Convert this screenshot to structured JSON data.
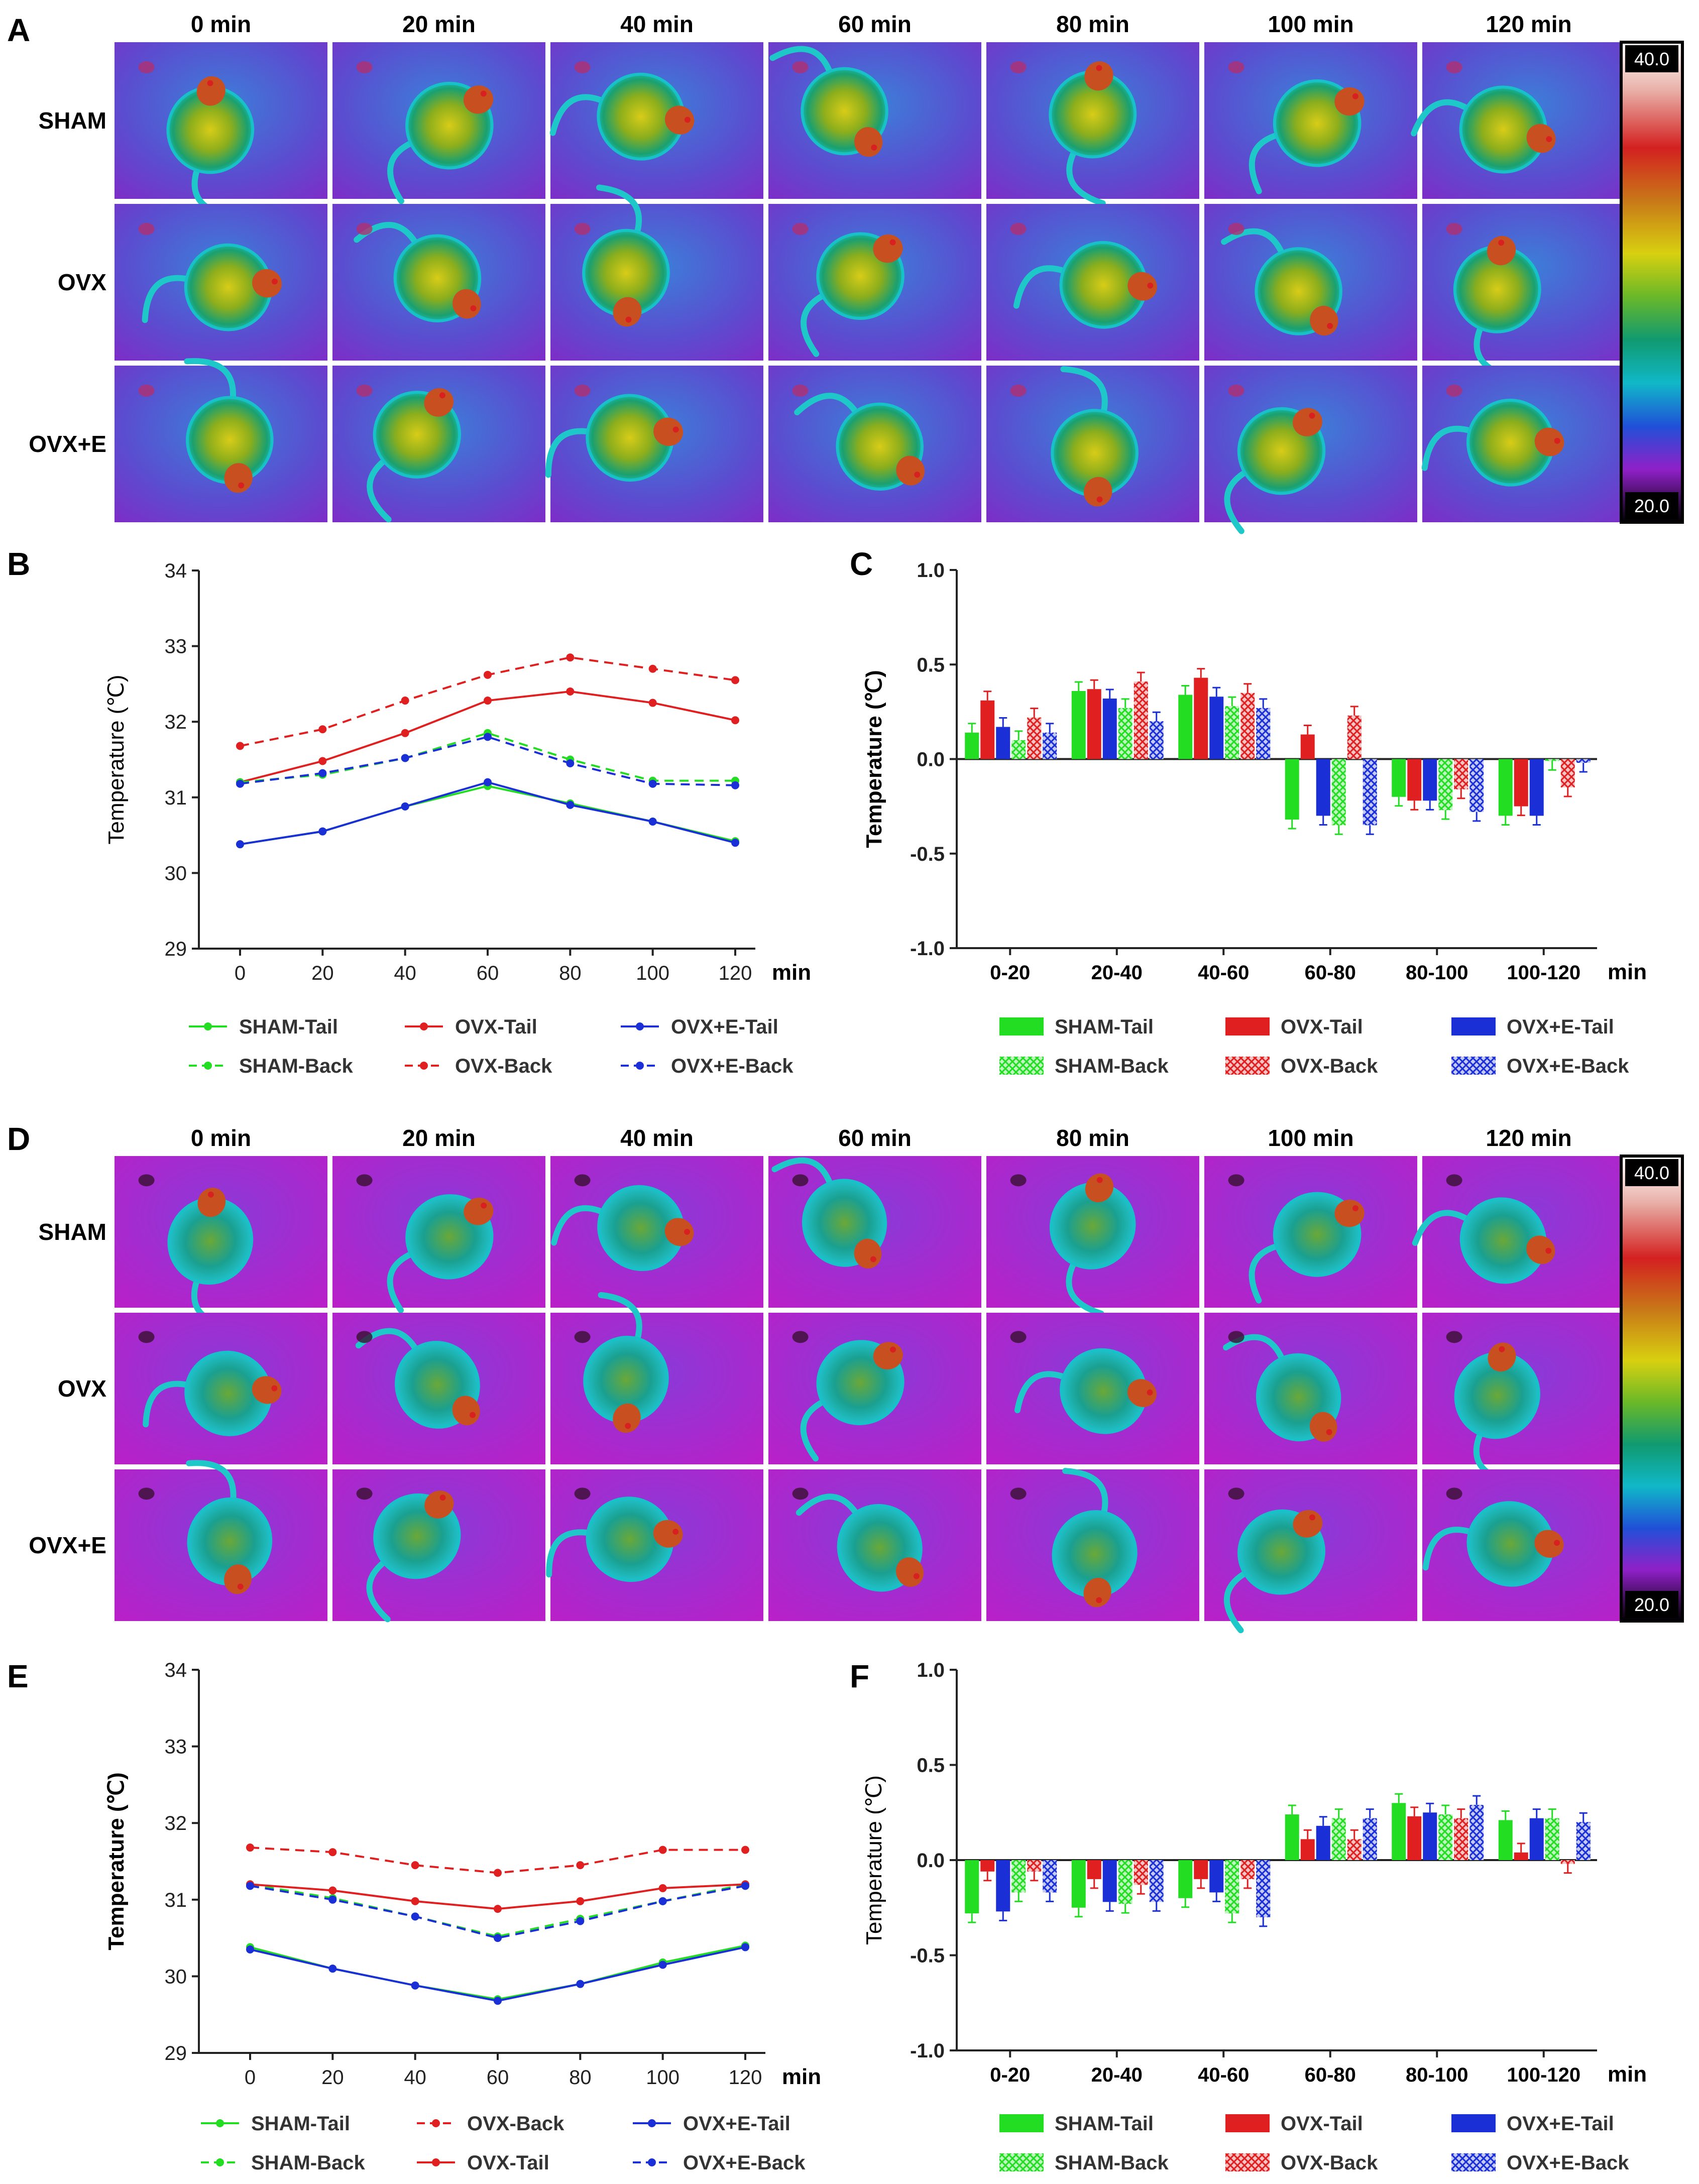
{
  "panel_letters": [
    "A",
    "B",
    "C",
    "D",
    "E",
    "F"
  ],
  "thermal_panels": [
    {
      "id": "A",
      "time_labels": [
        "0 min",
        "20 min",
        "40 min",
        "60 min",
        "80 min",
        "100 min",
        "120 min"
      ],
      "row_labels": [
        "SHAM",
        "OVX",
        "OVX+E"
      ],
      "scale_max": "40.0",
      "scale_min": "20.0"
    },
    {
      "id": "D",
      "time_labels": [
        "0 min",
        "20 min",
        "40 min",
        "60 min",
        "80 min",
        "100 min",
        "120 min"
      ],
      "row_labels": [
        "SHAM",
        "OVX",
        "OVX+E"
      ],
      "scale_max": "40.0",
      "scale_min": "20.0"
    }
  ],
  "colors": {
    "sham": "#22dd22",
    "ovx": "#e02020",
    "ovxe": "#1a2fd6"
  },
  "chart_data": [
    {
      "id": "B",
      "type": "line",
      "ylabel": "Temperature (℃)",
      "xunit": "min",
      "x": [
        0,
        20,
        40,
        60,
        80,
        100,
        120
      ],
      "ylim": [
        29,
        34
      ],
      "yticks": [
        29,
        30,
        31,
        32,
        33,
        34
      ],
      "series": [
        {
          "name": "SHAM-Tail",
          "group": "sham",
          "style": "solid",
          "values": [
            30.38,
            30.55,
            30.88,
            31.15,
            30.92,
            30.68,
            30.42
          ]
        },
        {
          "name": "OVX-Tail",
          "group": "ovx",
          "style": "solid",
          "values": [
            31.2,
            31.48,
            31.85,
            32.28,
            32.4,
            32.25,
            32.02
          ]
        },
        {
          "name": "OVX+E-Tail",
          "group": "ovxe",
          "style": "solid",
          "values": [
            30.38,
            30.55,
            30.88,
            31.2,
            30.9,
            30.68,
            30.4
          ]
        },
        {
          "name": "SHAM-Back",
          "group": "sham",
          "style": "dashed",
          "values": [
            31.2,
            31.3,
            31.52,
            31.85,
            31.5,
            31.22,
            31.22
          ]
        },
        {
          "name": "OVX-Back",
          "group": "ovx",
          "style": "dashed",
          "values": [
            31.68,
            31.9,
            32.28,
            32.62,
            32.85,
            32.7,
            32.55
          ]
        },
        {
          "name": "OVX+E-Back",
          "group": "ovxe",
          "style": "dashed",
          "values": [
            31.18,
            31.32,
            31.52,
            31.8,
            31.45,
            31.18,
            31.16
          ]
        }
      ],
      "legend": [
        [
          "SHAM-Tail",
          "OVX-Tail",
          "OVX+E-Tail"
        ],
        [
          "SHAM-Back",
          "OVX-Back",
          "OVX+E-Back"
        ]
      ]
    },
    {
      "id": "C",
      "type": "bar",
      "ylabel": "Temperature (℃)",
      "xunit": "min",
      "categories": [
        "0-20",
        "20-40",
        "40-60",
        "60-80",
        "80-100",
        "100-120"
      ],
      "ylim": [
        -1.0,
        1.0
      ],
      "yticks": [
        "-1.0",
        "-0.5",
        "0.0",
        "0.5",
        "1.0"
      ],
      "series": [
        {
          "name": "SHAM-Tail",
          "group": "sham",
          "pattern": "solid",
          "values": [
            0.14,
            0.36,
            0.34,
            -0.32,
            -0.2,
            -0.3
          ]
        },
        {
          "name": "OVX-Tail",
          "group": "ovx",
          "pattern": "solid",
          "values": [
            0.31,
            0.37,
            0.43,
            0.13,
            -0.22,
            -0.25
          ]
        },
        {
          "name": "OVX+E-Tail",
          "group": "ovxe",
          "pattern": "solid",
          "values": [
            0.17,
            0.32,
            0.33,
            -0.3,
            -0.22,
            -0.3
          ]
        },
        {
          "name": "SHAM-Back",
          "group": "sham",
          "pattern": "hatched",
          "values": [
            0.1,
            0.27,
            0.28,
            -0.35,
            -0.27,
            -0.01
          ]
        },
        {
          "name": "OVX-Back",
          "group": "ovx",
          "pattern": "hatched",
          "values": [
            0.22,
            0.41,
            0.35,
            0.23,
            -0.16,
            -0.15
          ]
        },
        {
          "name": "OVX+E-Back",
          "group": "ovxe",
          "pattern": "hatched",
          "values": [
            0.14,
            0.2,
            0.27,
            -0.35,
            -0.28,
            -0.02
          ]
        }
      ],
      "legend": [
        [
          "SHAM-Tail",
          "OVX-Tail",
          "OVX+E-Tail"
        ],
        [
          "SHAM-Back",
          "OVX-Back",
          "OVX+E-Back"
        ]
      ]
    },
    {
      "id": "E",
      "type": "line",
      "ylabel": "Temperature (℃)",
      "xunit": "min",
      "x": [
        0,
        20,
        40,
        60,
        80,
        100,
        120
      ],
      "ylim": [
        29,
        34
      ],
      "yticks": [
        29,
        30,
        31,
        32,
        33,
        34
      ],
      "series": [
        {
          "name": "SHAM-Tail",
          "group": "sham",
          "style": "solid",
          "values": [
            30.38,
            30.1,
            29.88,
            29.7,
            29.9,
            30.18,
            30.4
          ]
        },
        {
          "name": "OVX-Back",
          "group": "ovx",
          "style": "dashed",
          "values": [
            31.68,
            31.62,
            31.45,
            31.35,
            31.45,
            31.65,
            31.65
          ]
        },
        {
          "name": "OVX+E-Tail",
          "group": "ovxe",
          "style": "solid",
          "values": [
            30.35,
            30.1,
            29.88,
            29.68,
            29.9,
            30.15,
            30.38
          ]
        },
        {
          "name": "SHAM-Back",
          "group": "sham",
          "style": "dashed",
          "values": [
            31.2,
            31.02,
            30.78,
            30.52,
            30.75,
            30.98,
            31.2
          ]
        },
        {
          "name": "OVX-Tail",
          "group": "ovx",
          "style": "solid",
          "values": [
            31.2,
            31.12,
            30.98,
            30.88,
            30.98,
            31.15,
            31.2
          ]
        },
        {
          "name": "OVX+E-Back",
          "group": "ovxe",
          "style": "dashed",
          "values": [
            31.18,
            31.0,
            30.78,
            30.5,
            30.72,
            30.98,
            31.18
          ]
        }
      ],
      "legend": [
        [
          "SHAM-Tail",
          "OVX-Back",
          "OVX+E-Tail"
        ],
        [
          "SHAM-Back",
          "OVX-Tail",
          "OVX+E-Back"
        ]
      ]
    },
    {
      "id": "F",
      "type": "bar",
      "ylabel": "Temperature (℃)",
      "xunit": "min",
      "categories": [
        "0-20",
        "20-40",
        "40-60",
        "60-80",
        "80-100",
        "100-120"
      ],
      "ylim": [
        -1.0,
        1.0
      ],
      "yticks": [
        "-1.0",
        "-0.5",
        "0.0",
        "0.5",
        "1.0"
      ],
      "series": [
        {
          "name": "SHAM-Tail",
          "group": "sham",
          "pattern": "solid",
          "values": [
            -0.28,
            -0.25,
            -0.2,
            0.24,
            0.3,
            0.21
          ]
        },
        {
          "name": "OVX-Tail",
          "group": "ovx",
          "pattern": "solid",
          "values": [
            -0.06,
            -0.1,
            -0.1,
            0.11,
            0.23,
            0.04
          ]
        },
        {
          "name": "OVX+E-Tail",
          "group": "ovxe",
          "pattern": "solid",
          "values": [
            -0.27,
            -0.22,
            -0.17,
            0.18,
            0.25,
            0.22
          ]
        },
        {
          "name": "SHAM-Back",
          "group": "sham",
          "pattern": "hatched",
          "values": [
            -0.17,
            -0.23,
            -0.28,
            0.22,
            0.24,
            0.22
          ]
        },
        {
          "name": "OVX-Back",
          "group": "ovx",
          "pattern": "hatched",
          "values": [
            -0.06,
            -0.13,
            -0.1,
            0.11,
            0.22,
            -0.02
          ]
        },
        {
          "name": "OVX+E-Back",
          "group": "ovxe",
          "pattern": "hatched",
          "values": [
            -0.17,
            -0.22,
            -0.3,
            0.22,
            0.29,
            0.2
          ]
        }
      ],
      "legend": [
        [
          "SHAM-Tail",
          "OVX-Tail",
          "OVX+E-Tail"
        ],
        [
          "SHAM-Back",
          "OVX-Back",
          "OVX+E-Back"
        ]
      ]
    }
  ]
}
